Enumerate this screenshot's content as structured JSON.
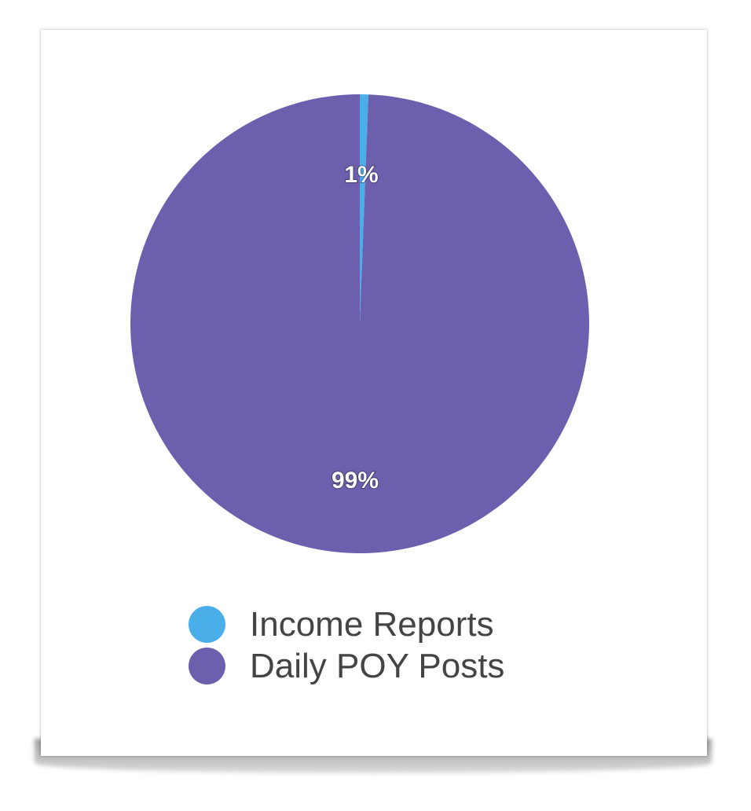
{
  "chart_data": {
    "type": "pie",
    "title": "",
    "slices": [
      {
        "name": "Income Reports",
        "value": 0.6,
        "label": "1%",
        "color": "#4aaee8"
      },
      {
        "name": "Daily POY Posts",
        "value": 99.4,
        "label": "99%",
        "color": "#6b5fae"
      }
    ],
    "start_angle": "top, clockwise",
    "legend_position": "bottom"
  }
}
